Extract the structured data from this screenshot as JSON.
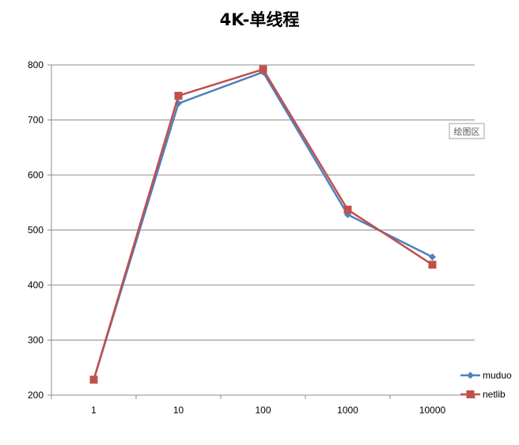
{
  "chart_data": {
    "type": "line",
    "title": "4K-单线程",
    "categories": [
      "1",
      "10",
      "100",
      "1000",
      "10000"
    ],
    "ylim": [
      200,
      800
    ],
    "y_ticks": [
      200,
      300,
      400,
      500,
      600,
      700,
      800
    ],
    "grid": "horizontal",
    "legend_position": "right-bottom",
    "series": [
      {
        "name": "muduo",
        "color": "#4F81BD",
        "marker": "diamond",
        "values": [
          228,
          730,
          787,
          528,
          451
        ]
      },
      {
        "name": "netlib",
        "color": "#C0504D",
        "marker": "square",
        "values": [
          228,
          744,
          792,
          537,
          437
        ]
      }
    ],
    "tooltip": "绘图区"
  }
}
